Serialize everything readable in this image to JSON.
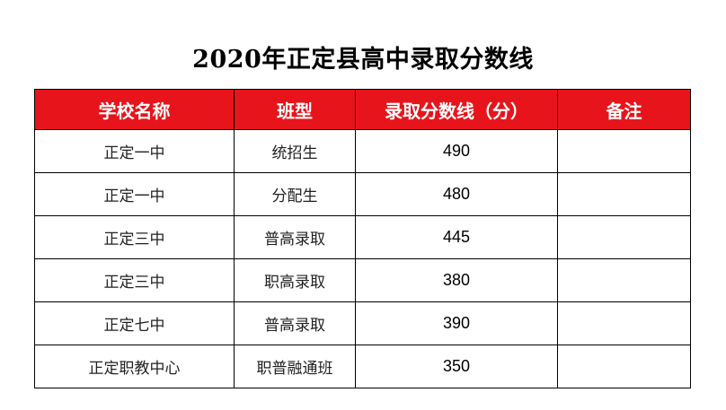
{
  "title": "2020年正定县高中录取分数线",
  "table": {
    "headers": [
      "学校名称",
      "班型",
      "录取分数线（分）",
      "备注"
    ],
    "rows": [
      {
        "school": "正定一中",
        "class_type": "统招生",
        "score": "490",
        "note": ""
      },
      {
        "school": "正定一中",
        "class_type": "分配生",
        "score": "480",
        "note": ""
      },
      {
        "school": "正定三中",
        "class_type": "普高录取",
        "score": "445",
        "note": ""
      },
      {
        "school": "正定三中",
        "class_type": "职高录取",
        "score": "380",
        "note": ""
      },
      {
        "school": "正定七中",
        "class_type": "普高录取",
        "score": "390",
        "note": ""
      },
      {
        "school": "正定职教中心",
        "class_type": "职普融通班",
        "score": "350",
        "note": ""
      }
    ]
  },
  "colors": {
    "header_bg": "#e8141b",
    "header_text": "#ffffff",
    "border": "#000000"
  }
}
